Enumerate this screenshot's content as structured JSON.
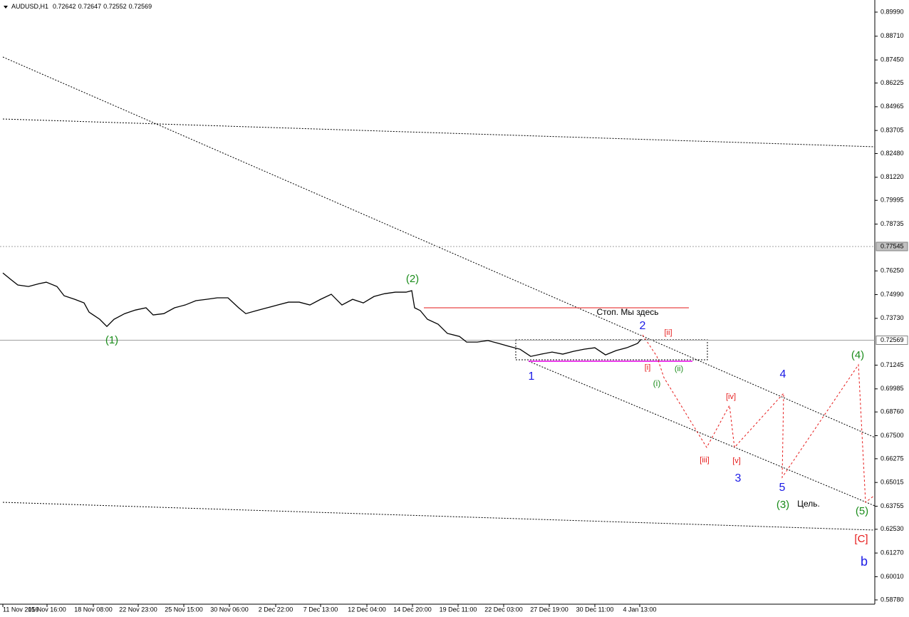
{
  "header": {
    "symbol": "AUDUSD,H1",
    "open": 0.72642,
    "high": 0.72647,
    "low": 0.72552,
    "close": 0.72569
  },
  "chart_data": {
    "type": "line",
    "xlim": [
      0,
      1228
    ],
    "ylim": [
      0.58553,
      0.90633
    ],
    "xticks": [
      {
        "value": 4,
        "label": "11 Nov 2016"
      },
      {
        "value": 66,
        "label": "15 Nov 16:00"
      },
      {
        "value": 131,
        "label": "18 Nov 08:00"
      },
      {
        "value": 194,
        "label": "22 Nov 23:00"
      },
      {
        "value": 258,
        "label": "25 Nov 15:00"
      },
      {
        "value": 322,
        "label": "30 Nov 06:00"
      },
      {
        "value": 387,
        "label": "2 Dec 22:00"
      },
      {
        "value": 450,
        "label": "7 Dec 13:00"
      },
      {
        "value": 515,
        "label": "12 Dec 04:00"
      },
      {
        "value": 579,
        "label": "14 Dec 20:00"
      },
      {
        "value": 643,
        "label": "19 Dec 11:00"
      },
      {
        "value": 707,
        "label": "22 Dec 03:00"
      },
      {
        "value": 771,
        "label": "27 Dec 19:00"
      },
      {
        "value": 835,
        "label": "30 Dec 11:00"
      },
      {
        "value": 898,
        "label": "4 Jan 13:00"
      }
    ],
    "yticks": [
      {
        "value": 0.8999,
        "label": "0.89990"
      },
      {
        "value": 0.8871,
        "label": "0.88710"
      },
      {
        "value": 0.8745,
        "label": "0.87450"
      },
      0.86225,
      0.84965,
      0.83705,
      {
        "value": 0.8248,
        "label": "0.82480"
      },
      {
        "value": 0.8122,
        "label": "0.81220"
      },
      0.79995,
      0.78735,
      {
        "value": 0.7625,
        "label": "0.76250"
      },
      {
        "value": 0.7499,
        "label": "0.74990"
      },
      {
        "value": 0.7373,
        "label": "0.73730"
      },
      0.71245,
      0.69985,
      {
        "value": 0.6876,
        "label": "0.68760"
      },
      {
        "value": 0.675,
        "label": "0.67500"
      },
      0.66275,
      0.65015,
      0.63755,
      {
        "value": 0.6253,
        "label": "0.62530"
      },
      {
        "value": 0.6127,
        "label": "0.61270"
      },
      {
        "value": 0.6001,
        "label": "0.60010"
      },
      {
        "value": 0.5878,
        "label": "0.58780"
      }
    ],
    "price_lines": [
      0.77545,
      0.72569
    ],
    "series": [
      {
        "name": "AUDUSD,H1",
        "color": "#000000",
        "x": [
          4,
          15,
          25,
          40,
          55,
          65,
          80,
          90,
          105,
          118,
          125,
          140,
          150,
          160,
          175,
          190,
          205,
          215,
          230,
          245,
          260,
          275,
          290,
          305,
          320,
          335,
          345,
          360,
          375,
          390,
          405,
          420,
          435,
          450,
          465,
          480,
          495,
          510,
          525,
          540,
          555,
          570,
          578,
          582,
          590,
          600,
          615,
          628,
          645,
          655,
          670,
          685,
          700,
          715,
          730,
          745,
          760,
          775,
          790,
          805,
          820,
          835,
          850,
          865,
          880,
          895,
          900
        ],
        "values": [
          0.7614,
          0.758,
          0.755,
          0.7542,
          0.7557,
          0.7565,
          0.7542,
          0.7493,
          0.7474,
          0.7455,
          0.7406,
          0.7368,
          0.733,
          0.7368,
          0.7398,
          0.7417,
          0.7429,
          0.7391,
          0.7398,
          0.7429,
          0.7444,
          0.7467,
          0.7474,
          0.7482,
          0.7482,
          0.7429,
          0.7398,
          0.7414,
          0.7429,
          0.7444,
          0.7459,
          0.7459,
          0.7444,
          0.7474,
          0.7501,
          0.7444,
          0.7474,
          0.7455,
          0.7489,
          0.7504,
          0.7512,
          0.7512,
          0.752,
          0.7429,
          0.7414,
          0.7368,
          0.7342,
          0.7293,
          0.7277,
          0.7247,
          0.7247,
          0.7255,
          0.724,
          0.7224,
          0.7209,
          0.7171,
          0.7183,
          0.7194,
          0.7183,
          0.7198,
          0.7209,
          0.7217,
          0.7179,
          0.7202,
          0.7217,
          0.724,
          0.7262
        ]
      }
    ],
    "annotations": [
      {
        "text": "(2)",
        "color": "#1a8c1a"
      },
      {
        "text": "(1)",
        "color": "#1a8c1a"
      },
      {
        "text": "Стоп. Мы здесь",
        "color": "#000000"
      },
      {
        "text": "2",
        "color": "#1a1ae6"
      },
      {
        "text": "[ii]",
        "color": "#e61a1a"
      },
      {
        "text": "1",
        "color": "#1a1ae6"
      },
      {
        "text": "[i]",
        "color": "#e61a1a"
      },
      {
        "text": "(ii)",
        "color": "#1a8c1a"
      },
      {
        "text": "(i)",
        "color": "#1a8c1a"
      },
      {
        "text": "[iv]",
        "color": "#e61a1a"
      },
      {
        "text": "4",
        "color": "#1a1ae6"
      },
      {
        "text": "[iii]",
        "color": "#e61a1a"
      },
      {
        "text": "[v]",
        "color": "#e61a1a"
      },
      {
        "text": "3",
        "color": "#1a1ae6"
      },
      {
        "text": "5",
        "color": "#1a1ae6"
      },
      {
        "text": "(3)",
        "color": "#1a8c1a"
      },
      {
        "text": "Цель.",
        "color": "#000000"
      },
      {
        "text": "(4)",
        "color": "#1a8c1a"
      },
      {
        "text": "(5)",
        "color": "#1a8c1a"
      },
      {
        "text": "[C]",
        "color": "#e61a1a"
      },
      {
        "text": "b",
        "color": "#1a1ae6"
      }
    ]
  }
}
